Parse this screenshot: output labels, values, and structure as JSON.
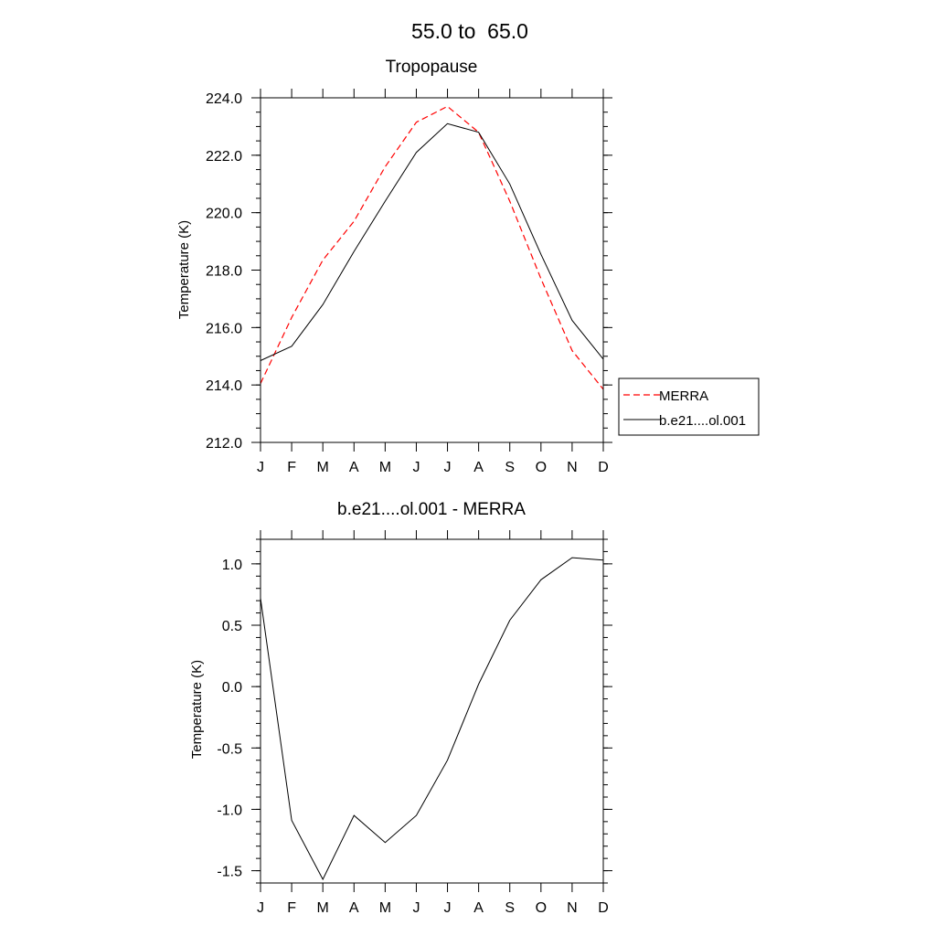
{
  "page_title": "55.0 to  65.0",
  "colors": {
    "merra": "#ff0000",
    "model": "#000000",
    "axis": "#000000",
    "background": "#ffffff"
  },
  "chart_data": [
    {
      "type": "line",
      "title": "Tropopause",
      "xlabel": "",
      "ylabel": "Temperature (K)",
      "categories": [
        "J",
        "F",
        "M",
        "A",
        "M",
        "J",
        "J",
        "A",
        "S",
        "O",
        "N",
        "D"
      ],
      "ylim": [
        212.0,
        224.0
      ],
      "yticks": [
        212.0,
        214.0,
        216.0,
        218.0,
        220.0,
        222.0,
        224.0
      ],
      "ytick_labels": [
        "212.0",
        "214.0",
        "216.0",
        "218.0",
        "220.0",
        "222.0",
        "224.0"
      ],
      "grid": false,
      "legend_position": "right",
      "series": [
        {
          "name": "MERRA",
          "style": "dashed",
          "color": "#ff0000",
          "values": [
            214.05,
            216.35,
            218.35,
            219.7,
            221.6,
            223.15,
            223.7,
            222.8,
            220.4,
            217.7,
            215.2,
            213.85
          ]
        },
        {
          "name": "b.e21....ol.001",
          "style": "solid",
          "color": "#000000",
          "values": [
            214.85,
            215.35,
            216.8,
            218.65,
            220.4,
            222.1,
            223.1,
            222.8,
            221.0,
            218.55,
            216.25,
            214.9
          ]
        }
      ]
    },
    {
      "type": "line",
      "title": "b.e21....ol.001 - MERRA",
      "xlabel": "",
      "ylabel": "Temperature (K)",
      "categories": [
        "J",
        "F",
        "M",
        "A",
        "M",
        "J",
        "J",
        "A",
        "S",
        "O",
        "N",
        "D"
      ],
      "ylim": [
        -1.6,
        1.2
      ],
      "yticks": [
        -1.5,
        -1.0,
        -0.5,
        0.0,
        0.5,
        1.0
      ],
      "ytick_labels": [
        "-1.5",
        "-1.0",
        "-0.5",
        "0.0",
        "0.5",
        "1.0"
      ],
      "grid": false,
      "series": [
        {
          "style": "solid",
          "color": "#000000",
          "values": [
            0.72,
            -1.09,
            -1.57,
            -1.05,
            -1.27,
            -1.05,
            -0.6,
            0.02,
            0.54,
            0.87,
            1.05,
            1.03
          ]
        }
      ]
    }
  ]
}
